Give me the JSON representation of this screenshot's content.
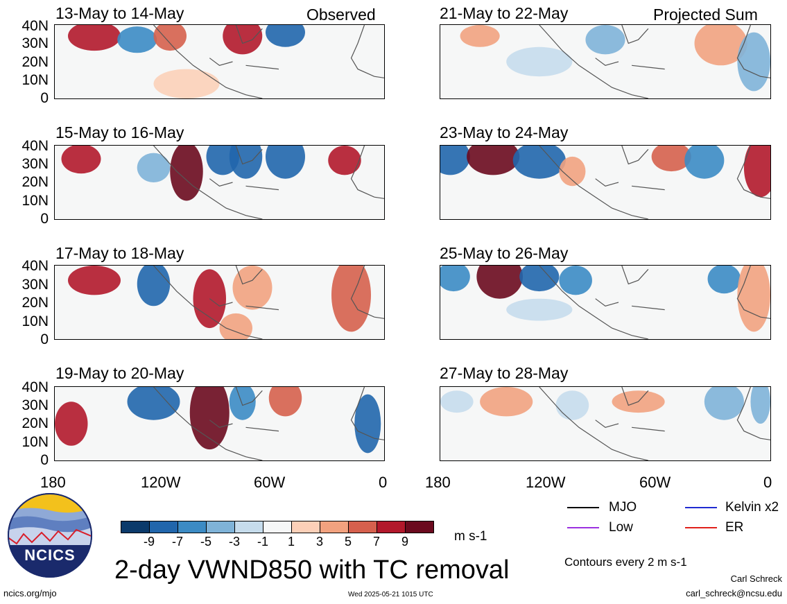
{
  "panels": [
    {
      "id": "p1",
      "title": "13-May to 14-May",
      "tag": "Observed"
    },
    {
      "id": "p2",
      "title": "15-May to 16-May",
      "tag": ""
    },
    {
      "id": "p3",
      "title": "17-May to 18-May",
      "tag": ""
    },
    {
      "id": "p4",
      "title": "19-May to 20-May",
      "tag": ""
    },
    {
      "id": "p5",
      "title": "21-May to 22-May",
      "tag": "Projected Sum"
    },
    {
      "id": "p6",
      "title": "23-May to 24-May",
      "tag": ""
    },
    {
      "id": "p7",
      "title": "25-May to 26-May",
      "tag": ""
    },
    {
      "id": "p8",
      "title": "27-May to 28-May",
      "tag": ""
    }
  ],
  "lat_labels": [
    "40N",
    "30N",
    "20N",
    "10N",
    "0"
  ],
  "lon_labels": [
    "180",
    "120W",
    "60W",
    "0"
  ],
  "colorbar": {
    "ticks": [
      "-9",
      "-7",
      "-5",
      "-3",
      "-1",
      "1",
      "3",
      "5",
      "7",
      "9"
    ],
    "colors": [
      "#0b3a6b",
      "#2166ac",
      "#3c8bc4",
      "#7fb3d8",
      "#c6dcec",
      "#f6f7f7",
      "#fcd0b8",
      "#f2a27f",
      "#d6604d",
      "#b2182b",
      "#6b0a1e"
    ],
    "units": "m s-1"
  },
  "title": "2-day VWND850 with TC removal",
  "legend": {
    "items": [
      {
        "label": "MJO",
        "color": "#000000"
      },
      {
        "label": "Kelvin x2",
        "color": "#1f2bd1"
      },
      {
        "label": "Low",
        "color": "#9b30e0"
      },
      {
        "label": "ER",
        "color": "#e0201a"
      }
    ],
    "contour_note": "Contours every 2 m s-1"
  },
  "logo_text": "NCICS",
  "footer": {
    "url": "ncics.org/mjo",
    "timestamp": "Wed 2025-05-21 1015 UTC",
    "author": "Carl Schreck",
    "email": "carl_schreck@ncsu.edu"
  }
}
